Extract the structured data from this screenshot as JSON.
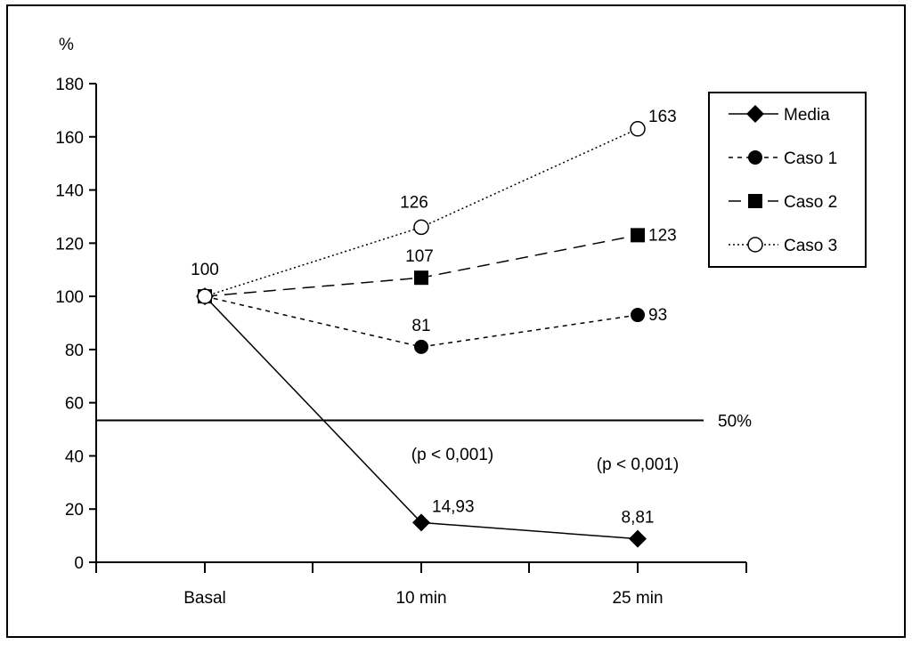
{
  "chart_data": {
    "type": "line",
    "ylabel": "%",
    "ylim": [
      0,
      180
    ],
    "yticks": [
      0,
      20,
      40,
      60,
      80,
      100,
      120,
      140,
      160,
      180
    ],
    "categories": [
      "Basal",
      "10 min",
      "25 min"
    ],
    "series": [
      {
        "name": "Media",
        "values": [
          100,
          14.93,
          8.81
        ],
        "labels": [
          "",
          "14,93",
          "8,81"
        ],
        "marker": "diamond",
        "dash": "solid"
      },
      {
        "name": "Caso 1",
        "values": [
          100,
          81,
          93
        ],
        "labels": [
          "",
          "81",
          "93"
        ],
        "marker": "circle",
        "dash": "short-dash"
      },
      {
        "name": "Caso 2",
        "values": [
          100,
          107,
          123
        ],
        "labels": [
          "",
          "107",
          "123"
        ],
        "marker": "square",
        "dash": "long-dash"
      },
      {
        "name": "Caso 3",
        "values": [
          100,
          126,
          163
        ],
        "labels": [
          "100",
          "126",
          "163"
        ],
        "marker": "open-circle",
        "dash": "dotted"
      }
    ],
    "reference_line": {
      "value": 50,
      "label": "50%"
    },
    "annotations": [
      {
        "category": "10 min",
        "text": "(p < 0,001)"
      },
      {
        "category": "25 min",
        "text": "(p < 0,001)"
      }
    ],
    "legend_position": "top-right",
    "grid": false
  }
}
